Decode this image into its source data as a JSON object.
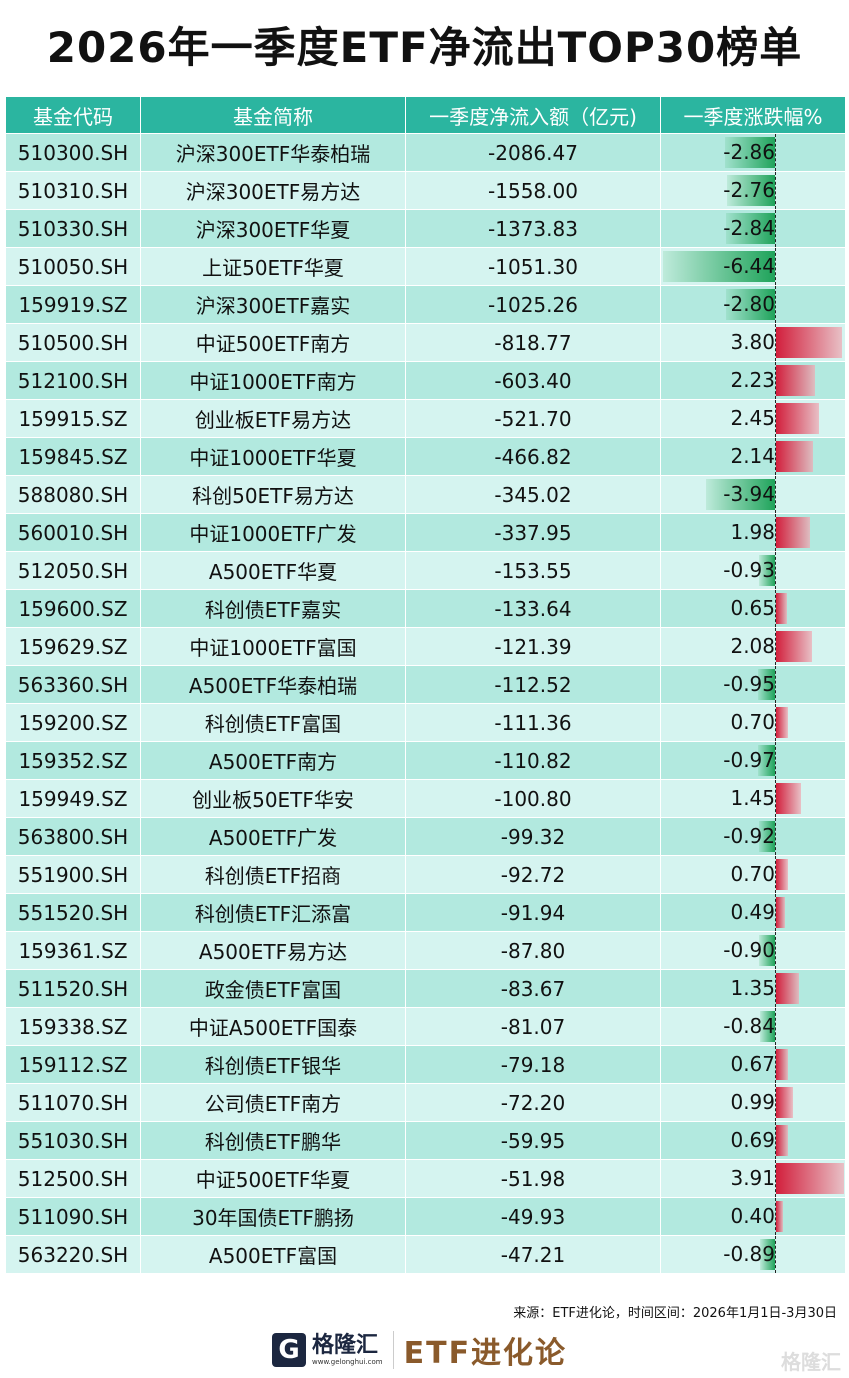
{
  "title": "2026年一季度ETF净流出TOP30榜单",
  "headers": [
    "基金代码",
    "基金简称",
    "一季度净流入额（亿元)",
    "一季度涨跌幅%"
  ],
  "colors": {
    "header": "#2bb5a0",
    "row_dark": "#b2e9df",
    "row_light": "#d5f4f0",
    "negative_bar": "#1fa35a",
    "positive_bar": "#d21f3c"
  },
  "rows": [
    [
      "510300.SH",
      "沪深300ETF华泰柏瑞",
      "-2086.47",
      "-2.86"
    ],
    [
      "510310.SH",
      "沪深300ETF易方达",
      "-1558.00",
      "-2.76"
    ],
    [
      "510330.SH",
      "沪深300ETF华夏",
      "-1373.83",
      "-2.84"
    ],
    [
      "510050.SH",
      "上证50ETF华夏",
      "-1051.30",
      "-6.44"
    ],
    [
      "159919.SZ",
      "沪深300ETF嘉实",
      "-1025.26",
      "-2.80"
    ],
    [
      "510500.SH",
      "中证500ETF南方",
      "-818.77",
      "3.80"
    ],
    [
      "512100.SH",
      "中证1000ETF南方",
      "-603.40",
      "2.23"
    ],
    [
      "159915.SZ",
      "创业板ETF易方达",
      "-521.70",
      "2.45"
    ],
    [
      "159845.SZ",
      "中证1000ETF华夏",
      "-466.82",
      "2.14"
    ],
    [
      "588080.SH",
      "科创50ETF易方达",
      "-345.02",
      "-3.94"
    ],
    [
      "560010.SH",
      "中证1000ETF广发",
      "-337.95",
      "1.98"
    ],
    [
      "512050.SH",
      "A500ETF华夏",
      "-153.55",
      "-0.93"
    ],
    [
      "159600.SZ",
      "科创债ETF嘉实",
      "-133.64",
      "0.65"
    ],
    [
      "159629.SZ",
      "中证1000ETF富国",
      "-121.39",
      "2.08"
    ],
    [
      "563360.SH",
      "A500ETF华泰柏瑞",
      "-112.52",
      "-0.95"
    ],
    [
      "159200.SZ",
      "科创债ETF富国",
      "-111.36",
      "0.70"
    ],
    [
      "159352.SZ",
      "A500ETF南方",
      "-110.82",
      "-0.97"
    ],
    [
      "159949.SZ",
      "创业板50ETF华安",
      "-100.80",
      "1.45"
    ],
    [
      "563800.SH",
      "A500ETF广发",
      "-99.32",
      "-0.92"
    ],
    [
      "551900.SH",
      "科创债ETF招商",
      "-92.72",
      "0.70"
    ],
    [
      "551520.SH",
      "科创债ETF汇添富",
      "-91.94",
      "0.49"
    ],
    [
      "159361.SZ",
      "A500ETF易方达",
      "-87.80",
      "-0.90"
    ],
    [
      "511520.SH",
      "政金债ETF富国",
      "-83.67",
      "1.35"
    ],
    [
      "159338.SZ",
      "中证A500ETF国泰",
      "-81.07",
      "-0.84"
    ],
    [
      "159112.SZ",
      "科创债ETF银华",
      "-79.18",
      "0.67"
    ],
    [
      "511070.SH",
      "公司债ETF南方",
      "-72.20",
      "0.99"
    ],
    [
      "551030.SH",
      "科创债ETF鹏华",
      "-59.95",
      "0.69"
    ],
    [
      "512500.SH",
      "中证500ETF华夏",
      "-51.98",
      "3.91"
    ],
    [
      "511090.SH",
      "30年国债ETF鹏扬",
      "-49.93",
      "0.40"
    ],
    [
      "563220.SH",
      "A500ETF富国",
      "-47.21",
      "-0.89"
    ]
  ],
  "source": "来源：ETF进化论，时间区间：2026年1月1日-3月30日",
  "footer": {
    "logo_icon": "gelonghui-g-logo",
    "brand": "格隆汇",
    "url": "www.gelonghui.com",
    "partner": "ETF进化论",
    "watermark": "格隆汇"
  }
}
